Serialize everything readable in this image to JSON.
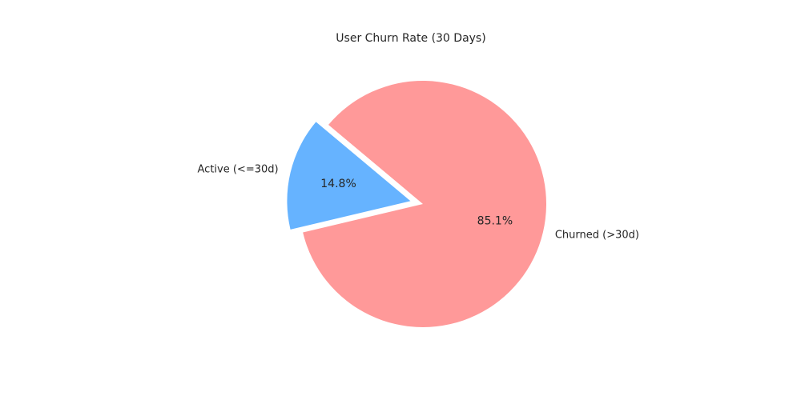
{
  "chart_data": {
    "type": "pie",
    "title": "User Churn Rate (30 Days)",
    "slices": [
      {
        "label": "Active (<=30d)",
        "value": 14.8,
        "pct_label": "14.8%",
        "color": "#66b3ff",
        "exploded": true
      },
      {
        "label": "Churned (>30d)",
        "value": 85.1,
        "pct_label": "85.1%",
        "color": "#ff9999",
        "exploded": false
      }
    ]
  }
}
